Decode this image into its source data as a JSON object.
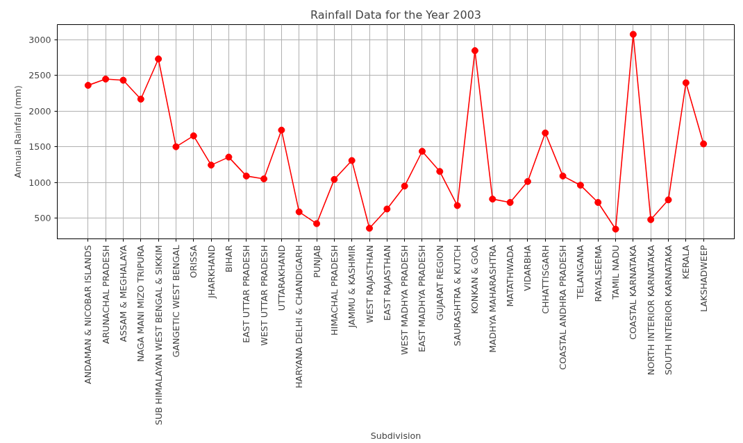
{
  "chart_data": {
    "type": "line",
    "title": "Rainfall Data for the Year 2003",
    "xlabel": "Subdivision",
    "ylabel": "Annual Rainfall (mm)",
    "categories": [
      "ANDAMAN & NICOBAR ISLANDS",
      "ARUNACHAL PRADESH",
      "ASSAM & MEGHALAYA",
      "NAGA MANI MIZO TRIPURA",
      "SUB HIMALAYAN WEST BENGAL & SIKKIM",
      "GANGETIC WEST BENGAL",
      "ORISSA",
      "JHARKHAND",
      "BIHAR",
      "EAST UTTAR PRADESH",
      "WEST UTTAR PRADESH",
      "UTTARAKHAND",
      "HARYANA DELHI & CHANDIGARH",
      "PUNJAB",
      "HIMACHAL PRADESH",
      "JAMMU & KASHMIR",
      "WEST RAJASTHAN",
      "EAST RAJASTHAN",
      "WEST MADHYA PRADESH",
      "EAST MADHYA PRADESH",
      "GUJARAT REGION",
      "SAURASHTRA & KUTCH",
      "KONKAN & GOA",
      "MADHYA MAHARASHTRA",
      "MATATHWADA",
      "VIDARBHA",
      "CHHATTISGARH",
      "COASTAL ANDHRA PRADESH",
      "TELANGANA",
      "RAYALSEEMA",
      "TAMIL NADU",
      "COASTAL KARNATAKA",
      "NORTH INTERIOR KARNATAKA",
      "SOUTH INTERIOR KARNATAKA",
      "KERALA",
      "LAKSHADWEEP"
    ],
    "series": [
      {
        "color": "#ff0000",
        "values": [
          2361,
          2449,
          2433,
          2168,
          2731,
          1501,
          1654,
          1244,
          1356,
          1091,
          1051,
          1734,
          589,
          424,
          1043,
          1308,
          359,
          629,
          950,
          1437,
          1155,
          677,
          2847,
          768,
          721,
          1014,
          1694,
          1091,
          962,
          721,
          347,
          3076,
          480,
          757,
          2397,
          1541
        ]
      }
    ],
    "ylim": [
      211,
      3212
    ],
    "yticks": [
      500,
      1000,
      1500,
      2000,
      2500,
      3000
    ],
    "grid": true,
    "marker": "circle",
    "line_style": "solid"
  }
}
